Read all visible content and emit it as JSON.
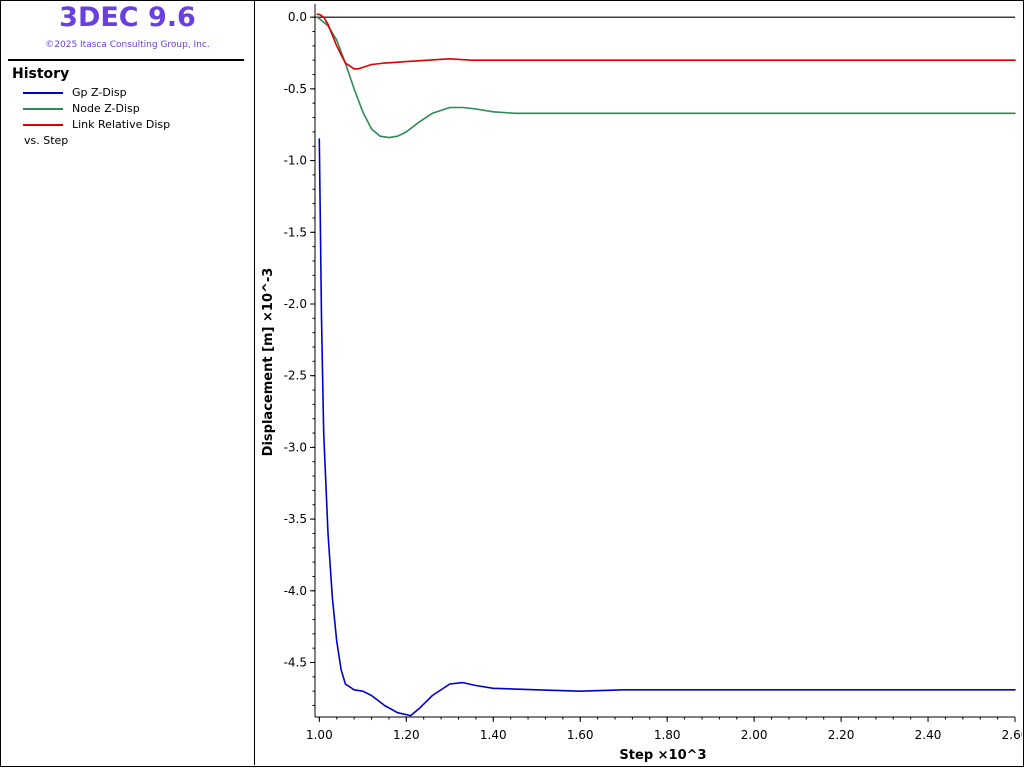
{
  "app": {
    "title": "3DEC 9.6",
    "copyright": "©2025 Itasca Consulting Group, Inc."
  },
  "legend": {
    "heading": "History",
    "entries": [
      {
        "label": "Gp Z-Disp",
        "color": "#0000cc"
      },
      {
        "label": "Node Z-Disp",
        "color": "#2e8b57"
      },
      {
        "label": "Link Relative Disp",
        "color": "#dd0000"
      }
    ],
    "vs_label": "vs. Step"
  },
  "chart_data": {
    "type": "line",
    "xlabel": "Step ×10^3",
    "ylabel": "Displacement [m]  ×10^-3",
    "xlim": [
      0.99,
      2.6
    ],
    "ylim": [
      -4.88,
      0.05
    ],
    "xticks": [
      1.0,
      1.2,
      1.4,
      1.6,
      1.8,
      2.0,
      2.2,
      2.4,
      2.6
    ],
    "xtick_labels": [
      "1.00",
      "1.20",
      "1.40",
      "1.60",
      "1.80",
      "2.00",
      "2.20",
      "2.40",
      "2.60"
    ],
    "yticks": [
      0.0,
      -0.5,
      -1.0,
      -1.5,
      -2.0,
      -2.5,
      -3.0,
      -3.5,
      -4.0,
      -4.5
    ],
    "ytick_labels": [
      "0.0",
      "-0.5",
      "-1.0",
      "-1.5",
      "-2.0",
      "-2.5",
      "-3.0",
      "-3.5",
      "-4.0",
      "-4.5"
    ],
    "zero_line": true,
    "grid": false,
    "series": [
      {
        "name": "Gp Z-Disp",
        "color": "#0000cc",
        "x": [
          1.0,
          1.005,
          1.01,
          1.02,
          1.03,
          1.04,
          1.05,
          1.06,
          1.08,
          1.1,
          1.12,
          1.15,
          1.18,
          1.21,
          1.23,
          1.26,
          1.3,
          1.33,
          1.36,
          1.4,
          1.5,
          1.6,
          1.7,
          1.8,
          2.0,
          2.2,
          2.4,
          2.6
        ],
        "y": [
          -0.85,
          -2.1,
          -2.9,
          -3.6,
          -4.05,
          -4.35,
          -4.55,
          -4.65,
          -4.69,
          -4.7,
          -4.73,
          -4.8,
          -4.85,
          -4.87,
          -4.82,
          -4.73,
          -4.65,
          -4.64,
          -4.66,
          -4.68,
          -4.69,
          -4.7,
          -4.69,
          -4.69,
          -4.69,
          -4.69,
          -4.69,
          -4.69
        ]
      },
      {
        "name": "Node Z-Disp",
        "color": "#2e8b57",
        "x": [
          0.995,
          1.0,
          1.02,
          1.04,
          1.06,
          1.08,
          1.1,
          1.12,
          1.14,
          1.16,
          1.18,
          1.2,
          1.23,
          1.26,
          1.3,
          1.33,
          1.36,
          1.4,
          1.45,
          1.5,
          1.6,
          1.8,
          2.0,
          2.2,
          2.4,
          2.6
        ],
        "y": [
          0.0,
          -0.01,
          -0.06,
          -0.16,
          -0.32,
          -0.5,
          -0.66,
          -0.78,
          -0.83,
          -0.84,
          -0.83,
          -0.8,
          -0.73,
          -0.67,
          -0.63,
          -0.63,
          -0.64,
          -0.66,
          -0.67,
          -0.67,
          -0.67,
          -0.67,
          -0.67,
          -0.67,
          -0.67,
          -0.67
        ]
      },
      {
        "name": "Link Relative Disp",
        "color": "#dd0000",
        "x": [
          0.995,
          1.0,
          1.01,
          1.02,
          1.04,
          1.06,
          1.08,
          1.09,
          1.1,
          1.12,
          1.15,
          1.2,
          1.25,
          1.3,
          1.35,
          1.4,
          1.6,
          1.8,
          2.0,
          2.2,
          2.4,
          2.6
        ],
        "y": [
          0.02,
          0.02,
          0.0,
          -0.05,
          -0.2,
          -0.32,
          -0.36,
          -0.36,
          -0.35,
          -0.33,
          -0.32,
          -0.31,
          -0.3,
          -0.29,
          -0.3,
          -0.3,
          -0.3,
          -0.3,
          -0.3,
          -0.3,
          -0.3,
          -0.3
        ]
      }
    ]
  }
}
